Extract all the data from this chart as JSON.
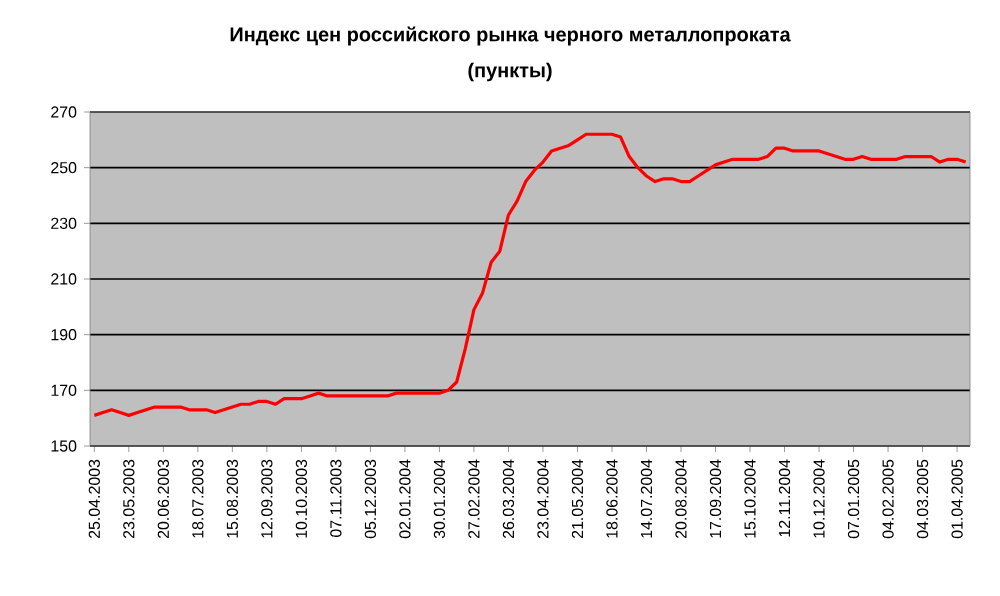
{
  "chart_data": {
    "type": "line",
    "title": "Индекс цен российского рынка черного металлопроката",
    "subtitle": "(пункты)",
    "categories": [
      "25.04.2003",
      null,
      null,
      null,
      "23.05.2003",
      null,
      null,
      null,
      "20.06.2003",
      null,
      null,
      null,
      "18.07.2003",
      null,
      null,
      null,
      "15.08.2003",
      null,
      null,
      null,
      "12.09.2003",
      null,
      null,
      null,
      "10.10.2003",
      null,
      null,
      null,
      "07.11.2003",
      null,
      null,
      null,
      "05.12.2003",
      null,
      null,
      null,
      "02.01.2004",
      null,
      null,
      null,
      "30.01.2004",
      null,
      null,
      null,
      "27.02.2004",
      null,
      null,
      null,
      "26.03.2004",
      null,
      null,
      null,
      "23.04.2004",
      null,
      null,
      null,
      "21.05.2004",
      null,
      null,
      null,
      "18.06.2004",
      null,
      null,
      null,
      "14.07.2004",
      null,
      null,
      null,
      "20.08.2004",
      null,
      null,
      null,
      "17.09.2004",
      null,
      null,
      null,
      "15.10.2004",
      null,
      null,
      null,
      "12.11.2004",
      null,
      null,
      null,
      "10.12.2004",
      null,
      null,
      null,
      "07.01.2005",
      null,
      null,
      null,
      "04.02.2005",
      null,
      null,
      null,
      "04.03.2005",
      null,
      null,
      null,
      "01.04.2005",
      null
    ],
    "series": [
      {
        "color": "#ff0000",
        "values": [
          161,
          162,
          163,
          162,
          161,
          162,
          163,
          164,
          164,
          164,
          164,
          163,
          163,
          163,
          162,
          163,
          164,
          165,
          165,
          166,
          166,
          165,
          167,
          167,
          167,
          168,
          169,
          168,
          168,
          168,
          168,
          168,
          168,
          168,
          168,
          169,
          169,
          169,
          169,
          169,
          169,
          170,
          173,
          185,
          199,
          205,
          216,
          220,
          233,
          238,
          245,
          249,
          252,
          256,
          257,
          258,
          260,
          262,
          262,
          262,
          262,
          261,
          254,
          250,
          247,
          245,
          246,
          246,
          245,
          245,
          247,
          249,
          251,
          252,
          253,
          253,
          253,
          253,
          254,
          257,
          257,
          256,
          256,
          256,
          256,
          255,
          254,
          253,
          253,
          254,
          253,
          253,
          253,
          253,
          254,
          254,
          254,
          254,
          252,
          253,
          253,
          252
        ]
      }
    ],
    "ylim": [
      150,
      270
    ],
    "yticks": [
      150,
      170,
      190,
      210,
      230,
      250,
      270
    ],
    "grid": "y",
    "marker": "none",
    "line_style": "solid"
  }
}
